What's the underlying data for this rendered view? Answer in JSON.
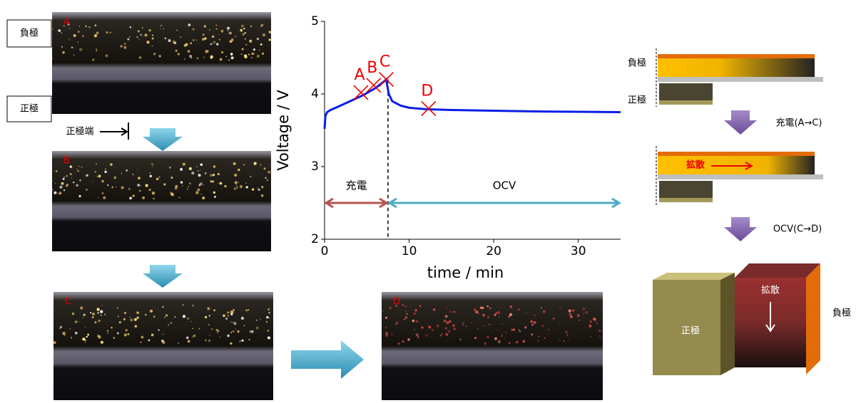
{
  "photos": {
    "labels": [
      "A",
      "B",
      "C",
      "D"
    ],
    "negative": "負極",
    "positive": "正極",
    "positive_edge": "正極端"
  },
  "chart_data": {
    "type": "line",
    "x_label": "time / min",
    "y_label": "Voltage / V",
    "x": [
      0,
      0.1,
      0.3,
      0.7,
      1.5,
      3,
      4.5,
      6,
      7,
      7.3,
      7.4,
      7.6,
      8,
      9,
      10,
      12,
      15,
      20,
      25,
      30,
      35
    ],
    "values": [
      3.52,
      3.7,
      3.75,
      3.78,
      3.82,
      3.9,
      3.98,
      4.08,
      4.17,
      4.2,
      4.12,
      4.0,
      3.9,
      3.84,
      3.81,
      3.79,
      3.78,
      3.77,
      3.76,
      3.755,
      3.75
    ],
    "color": "#0a1ee6",
    "xlim": [
      0,
      35
    ],
    "ylim": [
      2,
      5
    ],
    "xticks": [
      0,
      10,
      20,
      30
    ],
    "yticks": [
      2,
      3,
      4,
      5
    ],
    "markers": [
      {
        "label": "A",
        "x": 4.3,
        "y": 4.02
      },
      {
        "label": "B",
        "x": 5.8,
        "y": 4.12
      },
      {
        "label": "C",
        "x": 7.3,
        "y": 4.2
      },
      {
        "label": "D",
        "x": 12.3,
        "y": 3.8
      }
    ],
    "divider_x": 7.5,
    "spans": [
      {
        "text": "充電",
        "from": 0,
        "to": 7.5,
        "y": 2.5,
        "color": "#b85450"
      },
      {
        "text": "OCV",
        "from": 7.5,
        "to": 35,
        "y": 2.5,
        "color": "#4bacc6"
      }
    ]
  },
  "diagram": {
    "negative": "負極",
    "positive": "正極",
    "step1": "充電(A→C)",
    "diffusion": "拡散",
    "step2": "OCV(C→D)",
    "diffusion2": "拡散",
    "positive2": "正極",
    "negative2": "負極"
  }
}
